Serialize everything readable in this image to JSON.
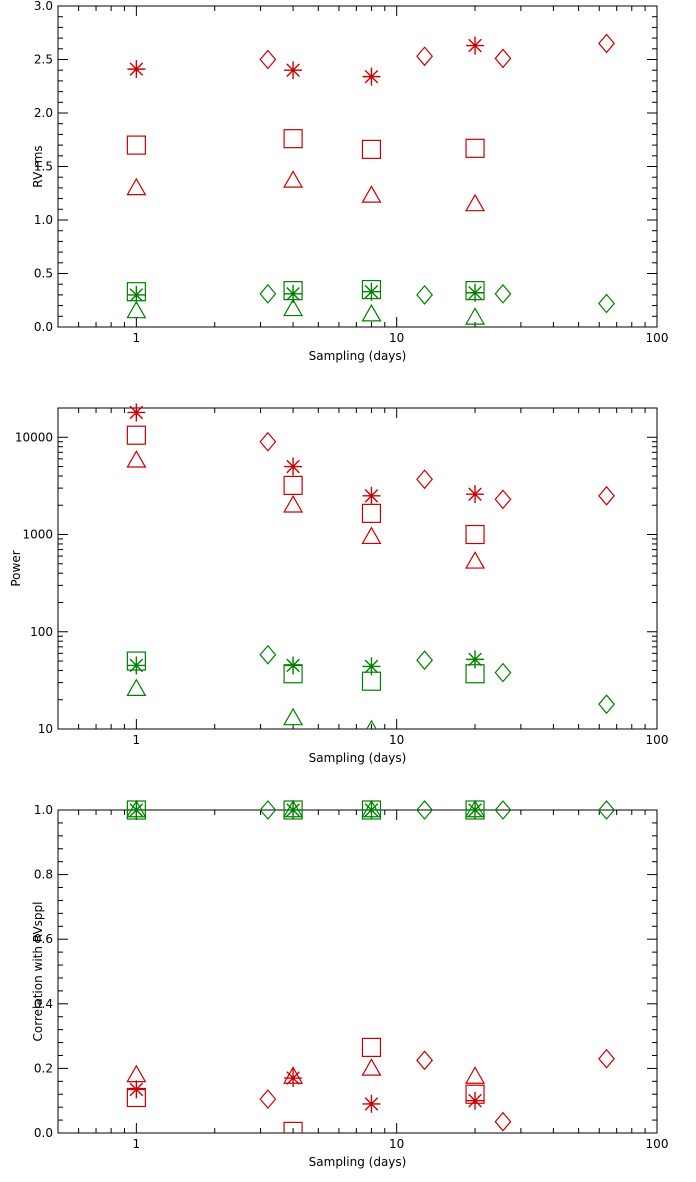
{
  "colors": {
    "red": "#cc0000",
    "green": "#008000",
    "axis": "#000000"
  },
  "chart_data": [
    {
      "type": "scatter",
      "xlabel": "Sampling (days)",
      "ylabel": "RV rms",
      "xscale": "log",
      "yscale": "linear",
      "xlim": [
        0.5,
        100
      ],
      "ylim": [
        0,
        3.0
      ],
      "xticks": [
        {
          "value": 1,
          "label": "1"
        },
        {
          "value": 10,
          "label": "10"
        },
        {
          "value": 100,
          "label": "100"
        }
      ],
      "yticks": [
        {
          "value": 0.0,
          "label": "0.0"
        },
        {
          "value": 0.5,
          "label": "0.5"
        },
        {
          "value": 1.0,
          "label": "1.0"
        },
        {
          "value": 1.5,
          "label": "1.5"
        },
        {
          "value": 2.0,
          "label": "2.0"
        },
        {
          "value": 2.5,
          "label": "2.5"
        },
        {
          "value": 3.0,
          "label": "3.0"
        }
      ],
      "grid": false,
      "series": [
        {
          "marker": "asterisk",
          "color": "red",
          "x": [
            1,
            4,
            8,
            20
          ],
          "y": [
            2.41,
            2.4,
            2.34,
            2.63
          ]
        },
        {
          "marker": "diamond",
          "color": "red",
          "x": [
            3.2,
            12.8,
            25.6,
            64
          ],
          "y": [
            2.5,
            2.53,
            2.51,
            2.65
          ]
        },
        {
          "marker": "square",
          "color": "red",
          "x": [
            1,
            4,
            8,
            20
          ],
          "y": [
            1.7,
            1.76,
            1.66,
            1.67
          ]
        },
        {
          "marker": "triangle",
          "color": "red",
          "x": [
            1,
            4,
            8,
            20
          ],
          "y": [
            1.3,
            1.37,
            1.23,
            1.15
          ]
        },
        {
          "marker": "square",
          "color": "green",
          "x": [
            1,
            4,
            8,
            20
          ],
          "y": [
            0.33,
            0.34,
            0.35,
            0.34
          ]
        },
        {
          "marker": "asterisk",
          "color": "green",
          "x": [
            1,
            4,
            8,
            20
          ],
          "y": [
            0.3,
            0.31,
            0.33,
            0.32
          ]
        },
        {
          "marker": "triangle",
          "color": "green",
          "x": [
            1,
            4,
            8,
            20
          ],
          "y": [
            0.15,
            0.17,
            0.12,
            0.09
          ]
        },
        {
          "marker": "diamond",
          "color": "green",
          "x": [
            3.2,
            12.8,
            25.6,
            64
          ],
          "y": [
            0.31,
            0.3,
            0.31,
            0.22
          ]
        }
      ]
    },
    {
      "type": "scatter",
      "xlabel": "Sampling (days)",
      "ylabel": "Power",
      "xscale": "log",
      "yscale": "log",
      "xlim": [
        0.5,
        100
      ],
      "ylim": [
        10,
        20000
      ],
      "xticks": [
        {
          "value": 1,
          "label": "1"
        },
        {
          "value": 10,
          "label": "10"
        },
        {
          "value": 100,
          "label": "100"
        }
      ],
      "yticks": [
        {
          "value": 10,
          "label": "10"
        },
        {
          "value": 100,
          "label": "100"
        },
        {
          "value": 1000,
          "label": "1000"
        },
        {
          "value": 10000,
          "label": "10000"
        }
      ],
      "grid": false,
      "series": [
        {
          "marker": "asterisk",
          "color": "red",
          "x": [
            1,
            4,
            8,
            20
          ],
          "y": [
            18000,
            5000,
            2500,
            2600
          ]
        },
        {
          "marker": "diamond",
          "color": "red",
          "x": [
            3.2,
            12.8,
            25.6,
            64
          ],
          "y": [
            9000,
            3700,
            2300,
            2500
          ]
        },
        {
          "marker": "square",
          "color": "red",
          "x": [
            1,
            4,
            8,
            20
          ],
          "y": [
            10500,
            3200,
            1650,
            1000
          ]
        },
        {
          "marker": "triangle",
          "color": "red",
          "x": [
            1,
            4,
            8,
            20
          ],
          "y": [
            5800,
            2000,
            950,
            530
          ]
        },
        {
          "marker": "square",
          "color": "green",
          "x": [
            1,
            4,
            8,
            20
          ],
          "y": [
            50,
            37,
            31,
            37
          ]
        },
        {
          "marker": "asterisk",
          "color": "green",
          "x": [
            1,
            4,
            8,
            20
          ],
          "y": [
            45,
            45,
            44,
            52
          ]
        },
        {
          "marker": "triangle",
          "color": "green",
          "x": [
            1,
            4,
            8
          ],
          "y": [
            26,
            13,
            9.8
          ]
        },
        {
          "marker": "diamond",
          "color": "green",
          "x": [
            3.2,
            12.8,
            25.6,
            64
          ],
          "y": [
            58,
            51,
            38,
            18
          ]
        }
      ]
    },
    {
      "type": "scatter",
      "xlabel": "Sampling (days)",
      "ylabel": "Correlation with RVsppl",
      "xscale": "log",
      "yscale": "linear",
      "xlim": [
        0.5,
        100
      ],
      "ylim": [
        0,
        1.0
      ],
      "xticks": [
        {
          "value": 1,
          "label": "1"
        },
        {
          "value": 10,
          "label": "10"
        },
        {
          "value": 100,
          "label": "100"
        }
      ],
      "yticks": [
        {
          "value": 0.0,
          "label": "0.0"
        },
        {
          "value": 0.2,
          "label": "0.2"
        },
        {
          "value": 0.4,
          "label": "0.4"
        },
        {
          "value": 0.6,
          "label": "0.6"
        },
        {
          "value": 0.8,
          "label": "0.8"
        },
        {
          "value": 1.0,
          "label": "1.0"
        }
      ],
      "grid": false,
      "series": [
        {
          "marker": "square",
          "color": "green",
          "x": [
            1,
            4,
            8,
            20
          ],
          "y": [
            1.0,
            1.0,
            1.0,
            1.0
          ]
        },
        {
          "marker": "asterisk",
          "color": "green",
          "x": [
            1,
            4,
            8,
            20
          ],
          "y": [
            1.0,
            1.0,
            1.0,
            1.0
          ]
        },
        {
          "marker": "triangle",
          "color": "green",
          "x": [
            1,
            4,
            8,
            20
          ],
          "y": [
            1.0,
            1.0,
            1.0,
            1.0
          ]
        },
        {
          "marker": "diamond",
          "color": "green",
          "x": [
            3.2,
            12.8,
            25.6,
            64
          ],
          "y": [
            1.0,
            1.0,
            1.0,
            1.0
          ]
        },
        {
          "marker": "asterisk",
          "color": "red",
          "x": [
            1,
            4,
            8,
            20
          ],
          "y": [
            0.135,
            0.17,
            0.09,
            0.1
          ]
        },
        {
          "marker": "diamond",
          "color": "red",
          "x": [
            3.2,
            12.8,
            25.6,
            64
          ],
          "y": [
            0.105,
            0.225,
            0.035,
            0.23
          ]
        },
        {
          "marker": "square",
          "color": "red",
          "x": [
            1,
            4,
            8,
            20
          ],
          "y": [
            0.11,
            0.005,
            0.265,
            0.12
          ]
        },
        {
          "marker": "triangle",
          "color": "red",
          "x": [
            1,
            4,
            8,
            20
          ],
          "y": [
            0.18,
            0.175,
            0.2,
            0.175
          ]
        }
      ]
    }
  ]
}
